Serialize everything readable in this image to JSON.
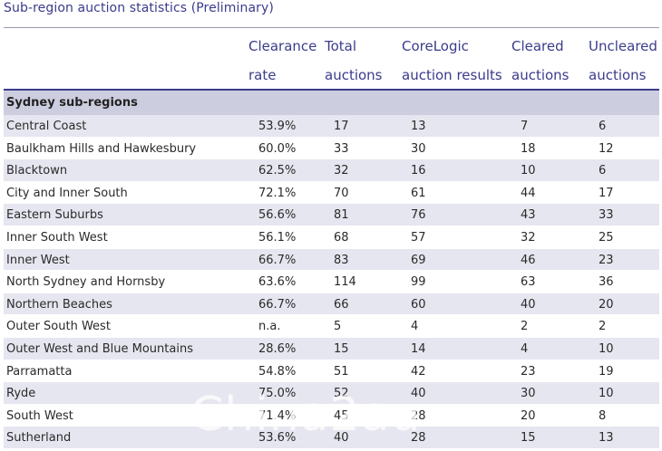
{
  "title": "Sub-region auction statistics (Preliminary)",
  "columns": [
    {
      "line1": "Clearance",
      "line2": "rate"
    },
    {
      "line1": "Total",
      "line2": "auctions"
    },
    {
      "line1": "CoreLogic",
      "line2": "auction results"
    },
    {
      "line1": "Cleared",
      "line2": "auctions"
    },
    {
      "line1": "Uncleared",
      "line2": "auctions"
    }
  ],
  "section_label": "Sydney sub-regions",
  "rows": [
    [
      "Central Coast",
      "53.9%",
      "17",
      "13",
      "7",
      "6"
    ],
    [
      "Baulkham Hills and Hawkesbury",
      "60.0%",
      "33",
      "30",
      "18",
      "12"
    ],
    [
      "Blacktown",
      "62.5%",
      "32",
      "16",
      "10",
      "6"
    ],
    [
      "City and Inner South",
      "72.1%",
      "70",
      "61",
      "44",
      "17"
    ],
    [
      "Eastern Suburbs",
      "56.6%",
      "81",
      "76",
      "43",
      "33"
    ],
    [
      "Inner South West",
      "56.1%",
      "68",
      "57",
      "32",
      "25"
    ],
    [
      "Inner West",
      "66.7%",
      "83",
      "69",
      "46",
      "23"
    ],
    [
      "North Sydney and Hornsby",
      "63.6%",
      "114",
      "99",
      "63",
      "36"
    ],
    [
      "Northern Beaches",
      "66.7%",
      "66",
      "60",
      "40",
      "20"
    ],
    [
      "Outer South West",
      "n.a.",
      "5",
      "4",
      "2",
      "2"
    ],
    [
      "Outer West and Blue Mountains",
      "28.6%",
      "15",
      "14",
      "4",
      "10"
    ],
    [
      "Parramatta",
      "54.8%",
      "51",
      "42",
      "23",
      "19"
    ],
    [
      "Ryde",
      "75.0%",
      "52",
      "40",
      "30",
      "10"
    ],
    [
      "South West",
      "71.4%",
      "45",
      "28",
      "20",
      "8"
    ],
    [
      "Sutherland",
      "53.6%",
      "40",
      "28",
      "15",
      "13"
    ]
  ],
  "watermark": "China2au",
  "colors": {
    "heading": "#3b3b8c",
    "section_bg": "#cdcde0",
    "row_shade": "#e6e6f0"
  }
}
